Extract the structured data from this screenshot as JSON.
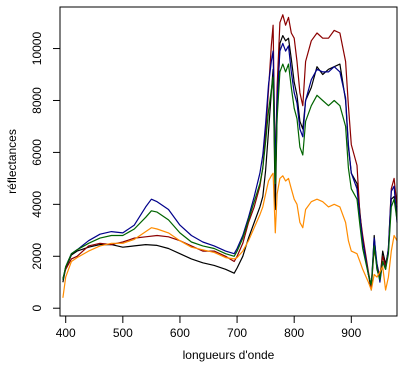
{
  "chart_data": {
    "type": "line",
    "title": "",
    "xlabel": "longueurs d'onde",
    "ylabel": "réflectances",
    "xlim": [
      390,
      980
    ],
    "ylim": [
      -300,
      11600
    ],
    "x_ticks": [
      400,
      500,
      600,
      700,
      800,
      900
    ],
    "y_ticks": [
      0,
      2000,
      4000,
      6000,
      8000,
      10000
    ],
    "grid": false,
    "legend": "none",
    "series": [
      {
        "color": "#000000",
        "points": [
          [
            395,
            1000
          ],
          [
            400,
            1550
          ],
          [
            410,
            2050
          ],
          [
            420,
            2200
          ],
          [
            440,
            2350
          ],
          [
            460,
            2450
          ],
          [
            480,
            2450
          ],
          [
            500,
            2350
          ],
          [
            520,
            2400
          ],
          [
            540,
            2450
          ],
          [
            560,
            2420
          ],
          [
            580,
            2300
          ],
          [
            600,
            2100
          ],
          [
            620,
            1900
          ],
          [
            640,
            1750
          ],
          [
            660,
            1650
          ],
          [
            680,
            1500
          ],
          [
            695,
            1350
          ],
          [
            700,
            1550
          ],
          [
            710,
            2000
          ],
          [
            720,
            2700
          ],
          [
            730,
            3300
          ],
          [
            740,
            3900
          ],
          [
            745,
            4300
          ],
          [
            750,
            5300
          ],
          [
            755,
            6800
          ],
          [
            760,
            8300
          ],
          [
            763,
            9200
          ],
          [
            767,
            3800
          ],
          [
            770,
            7500
          ],
          [
            775,
            10200
          ],
          [
            780,
            10500
          ],
          [
            785,
            10300
          ],
          [
            790,
            10400
          ],
          [
            795,
            9600
          ],
          [
            800,
            8700
          ],
          [
            805,
            8200
          ],
          [
            810,
            7200
          ],
          [
            815,
            6900
          ],
          [
            820,
            8000
          ],
          [
            830,
            8500
          ],
          [
            840,
            9300
          ],
          [
            850,
            9000
          ],
          [
            860,
            9200
          ],
          [
            870,
            9300
          ],
          [
            880,
            9400
          ],
          [
            890,
            8000
          ],
          [
            895,
            6200
          ],
          [
            900,
            5200
          ],
          [
            910,
            4800
          ],
          [
            915,
            3700
          ],
          [
            920,
            2600
          ],
          [
            930,
            1300
          ],
          [
            935,
            700
          ],
          [
            940,
            2800
          ],
          [
            945,
            1500
          ],
          [
            950,
            1100
          ],
          [
            955,
            2200
          ],
          [
            960,
            1700
          ],
          [
            965,
            2200
          ],
          [
            970,
            4200
          ],
          [
            975,
            4300
          ],
          [
            980,
            3700
          ]
        ]
      },
      {
        "color": "#8b0000",
        "points": [
          [
            395,
            1150
          ],
          [
            400,
            1500
          ],
          [
            410,
            1900
          ],
          [
            420,
            2000
          ],
          [
            440,
            2400
          ],
          [
            460,
            2500
          ],
          [
            480,
            2450
          ],
          [
            500,
            2550
          ],
          [
            520,
            2700
          ],
          [
            540,
            2750
          ],
          [
            560,
            2800
          ],
          [
            580,
            2750
          ],
          [
            600,
            2600
          ],
          [
            620,
            2400
          ],
          [
            640,
            2200
          ],
          [
            660,
            2200
          ],
          [
            680,
            2000
          ],
          [
            695,
            1800
          ],
          [
            700,
            2000
          ],
          [
            710,
            2500
          ],
          [
            720,
            3300
          ],
          [
            730,
            3900
          ],
          [
            740,
            4700
          ],
          [
            745,
            5400
          ],
          [
            750,
            6700
          ],
          [
            755,
            8400
          ],
          [
            760,
            10100
          ],
          [
            763,
            10900
          ],
          [
            767,
            5200
          ],
          [
            770,
            8500
          ],
          [
            775,
            11000
          ],
          [
            780,
            11300
          ],
          [
            785,
            10900
          ],
          [
            790,
            11200
          ],
          [
            795,
            10600
          ],
          [
            800,
            10400
          ],
          [
            805,
            9500
          ],
          [
            810,
            8300
          ],
          [
            815,
            7800
          ],
          [
            820,
            9500
          ],
          [
            830,
            10300
          ],
          [
            840,
            10600
          ],
          [
            850,
            10400
          ],
          [
            860,
            10400
          ],
          [
            870,
            10700
          ],
          [
            880,
            10600
          ],
          [
            890,
            9500
          ],
          [
            895,
            7800
          ],
          [
            900,
            6300
          ],
          [
            910,
            5500
          ],
          [
            915,
            3600
          ],
          [
            920,
            2800
          ],
          [
            930,
            1400
          ],
          [
            935,
            800
          ],
          [
            940,
            2300
          ],
          [
            945,
            1700
          ],
          [
            950,
            1200
          ],
          [
            955,
            2000
          ],
          [
            960,
            1600
          ],
          [
            965,
            2300
          ],
          [
            970,
            4600
          ],
          [
            975,
            5000
          ],
          [
            980,
            3900
          ]
        ]
      },
      {
        "color": "#00008b",
        "points": [
          [
            395,
            1100
          ],
          [
            400,
            1600
          ],
          [
            410,
            2100
          ],
          [
            420,
            2250
          ],
          [
            440,
            2600
          ],
          [
            460,
            2850
          ],
          [
            480,
            2950
          ],
          [
            500,
            2900
          ],
          [
            520,
            3200
          ],
          [
            540,
            3900
          ],
          [
            550,
            4200
          ],
          [
            560,
            4100
          ],
          [
            580,
            3800
          ],
          [
            600,
            3200
          ],
          [
            620,
            2800
          ],
          [
            640,
            2550
          ],
          [
            660,
            2400
          ],
          [
            680,
            2200
          ],
          [
            695,
            2100
          ],
          [
            700,
            2300
          ],
          [
            710,
            2800
          ],
          [
            720,
            3500
          ],
          [
            730,
            4300
          ],
          [
            740,
            5200
          ],
          [
            745,
            5900
          ],
          [
            750,
            7100
          ],
          [
            755,
            8600
          ],
          [
            760,
            9500
          ],
          [
            763,
            9900
          ],
          [
            767,
            5400
          ],
          [
            770,
            8000
          ],
          [
            775,
            9900
          ],
          [
            780,
            10200
          ],
          [
            785,
            9900
          ],
          [
            790,
            10100
          ],
          [
            795,
            9100
          ],
          [
            800,
            8300
          ],
          [
            805,
            7900
          ],
          [
            810,
            6900
          ],
          [
            815,
            6600
          ],
          [
            820,
            8000
          ],
          [
            830,
            8800
          ],
          [
            840,
            9200
          ],
          [
            850,
            9100
          ],
          [
            860,
            9100
          ],
          [
            870,
            9300
          ],
          [
            880,
            9100
          ],
          [
            890,
            8100
          ],
          [
            895,
            6300
          ],
          [
            900,
            5200
          ],
          [
            910,
            4600
          ],
          [
            915,
            3500
          ],
          [
            920,
            2600
          ],
          [
            930,
            1300
          ],
          [
            935,
            900
          ],
          [
            940,
            2700
          ],
          [
            945,
            1700
          ],
          [
            950,
            1000
          ],
          [
            955,
            1800
          ],
          [
            960,
            1500
          ],
          [
            965,
            2300
          ],
          [
            970,
            4500
          ],
          [
            975,
            4700
          ],
          [
            980,
            3300
          ]
        ]
      },
      {
        "color": "#006400",
        "points": [
          [
            395,
            1100
          ],
          [
            400,
            1600
          ],
          [
            410,
            2100
          ],
          [
            420,
            2250
          ],
          [
            440,
            2500
          ],
          [
            460,
            2700
          ],
          [
            480,
            2800
          ],
          [
            500,
            2800
          ],
          [
            520,
            3050
          ],
          [
            540,
            3500
          ],
          [
            550,
            3750
          ],
          [
            560,
            3700
          ],
          [
            580,
            3400
          ],
          [
            600,
            2900
          ],
          [
            620,
            2550
          ],
          [
            640,
            2400
          ],
          [
            660,
            2300
          ],
          [
            680,
            2100
          ],
          [
            695,
            2000
          ],
          [
            700,
            2200
          ],
          [
            710,
            2700
          ],
          [
            720,
            3400
          ],
          [
            730,
            4100
          ],
          [
            740,
            4800
          ],
          [
            745,
            5400
          ],
          [
            750,
            6400
          ],
          [
            755,
            7600
          ],
          [
            760,
            8400
          ],
          [
            763,
            8900
          ],
          [
            767,
            4800
          ],
          [
            770,
            7300
          ],
          [
            775,
            9100
          ],
          [
            780,
            9400
          ],
          [
            785,
            9100
          ],
          [
            790,
            9400
          ],
          [
            795,
            8500
          ],
          [
            800,
            7700
          ],
          [
            805,
            7300
          ],
          [
            810,
            6200
          ],
          [
            815,
            5900
          ],
          [
            820,
            7200
          ],
          [
            830,
            7800
          ],
          [
            840,
            8200
          ],
          [
            850,
            8000
          ],
          [
            860,
            7800
          ],
          [
            870,
            8000
          ],
          [
            880,
            7800
          ],
          [
            890,
            7000
          ],
          [
            895,
            5400
          ],
          [
            900,
            4600
          ],
          [
            910,
            4200
          ],
          [
            915,
            3200
          ],
          [
            920,
            2300
          ],
          [
            930,
            1300
          ],
          [
            935,
            900
          ],
          [
            940,
            2400
          ],
          [
            945,
            1500
          ],
          [
            950,
            1100
          ],
          [
            955,
            1800
          ],
          [
            960,
            1500
          ],
          [
            965,
            2100
          ],
          [
            970,
            3900
          ],
          [
            975,
            4200
          ],
          [
            980,
            3400
          ]
        ]
      },
      {
        "color": "#ff8c00",
        "points": [
          [
            395,
            400
          ],
          [
            400,
            1200
          ],
          [
            410,
            1800
          ],
          [
            420,
            1950
          ],
          [
            440,
            2200
          ],
          [
            460,
            2400
          ],
          [
            480,
            2500
          ],
          [
            500,
            2500
          ],
          [
            520,
            2650
          ],
          [
            540,
            2950
          ],
          [
            550,
            3100
          ],
          [
            560,
            3050
          ],
          [
            580,
            2900
          ],
          [
            600,
            2600
          ],
          [
            620,
            2350
          ],
          [
            640,
            2250
          ],
          [
            660,
            2150
          ],
          [
            680,
            1950
          ],
          [
            695,
            1900
          ],
          [
            700,
            1950
          ],
          [
            710,
            2200
          ],
          [
            720,
            2600
          ],
          [
            730,
            3100
          ],
          [
            740,
            3600
          ],
          [
            745,
            3900
          ],
          [
            750,
            4400
          ],
          [
            755,
            4900
          ],
          [
            760,
            5100
          ],
          [
            763,
            5200
          ],
          [
            767,
            2900
          ],
          [
            770,
            4400
          ],
          [
            775,
            5000
          ],
          [
            780,
            5100
          ],
          [
            785,
            4900
          ],
          [
            790,
            5000
          ],
          [
            795,
            4600
          ],
          [
            800,
            4200
          ],
          [
            805,
            4000
          ],
          [
            810,
            3300
          ],
          [
            815,
            3100
          ],
          [
            820,
            3800
          ],
          [
            830,
            4100
          ],
          [
            840,
            4200
          ],
          [
            850,
            4100
          ],
          [
            860,
            3900
          ],
          [
            870,
            4000
          ],
          [
            880,
            3900
          ],
          [
            890,
            3300
          ],
          [
            895,
            2600
          ],
          [
            900,
            2200
          ],
          [
            910,
            2100
          ],
          [
            915,
            1800
          ],
          [
            920,
            1500
          ],
          [
            930,
            1000
          ],
          [
            935,
            700
          ],
          [
            940,
            1300
          ],
          [
            945,
            1200
          ],
          [
            950,
            1400
          ],
          [
            955,
            1600
          ],
          [
            960,
            700
          ],
          [
            965,
            1200
          ],
          [
            970,
            2200
          ],
          [
            975,
            2800
          ],
          [
            980,
            2600
          ]
        ]
      }
    ]
  }
}
